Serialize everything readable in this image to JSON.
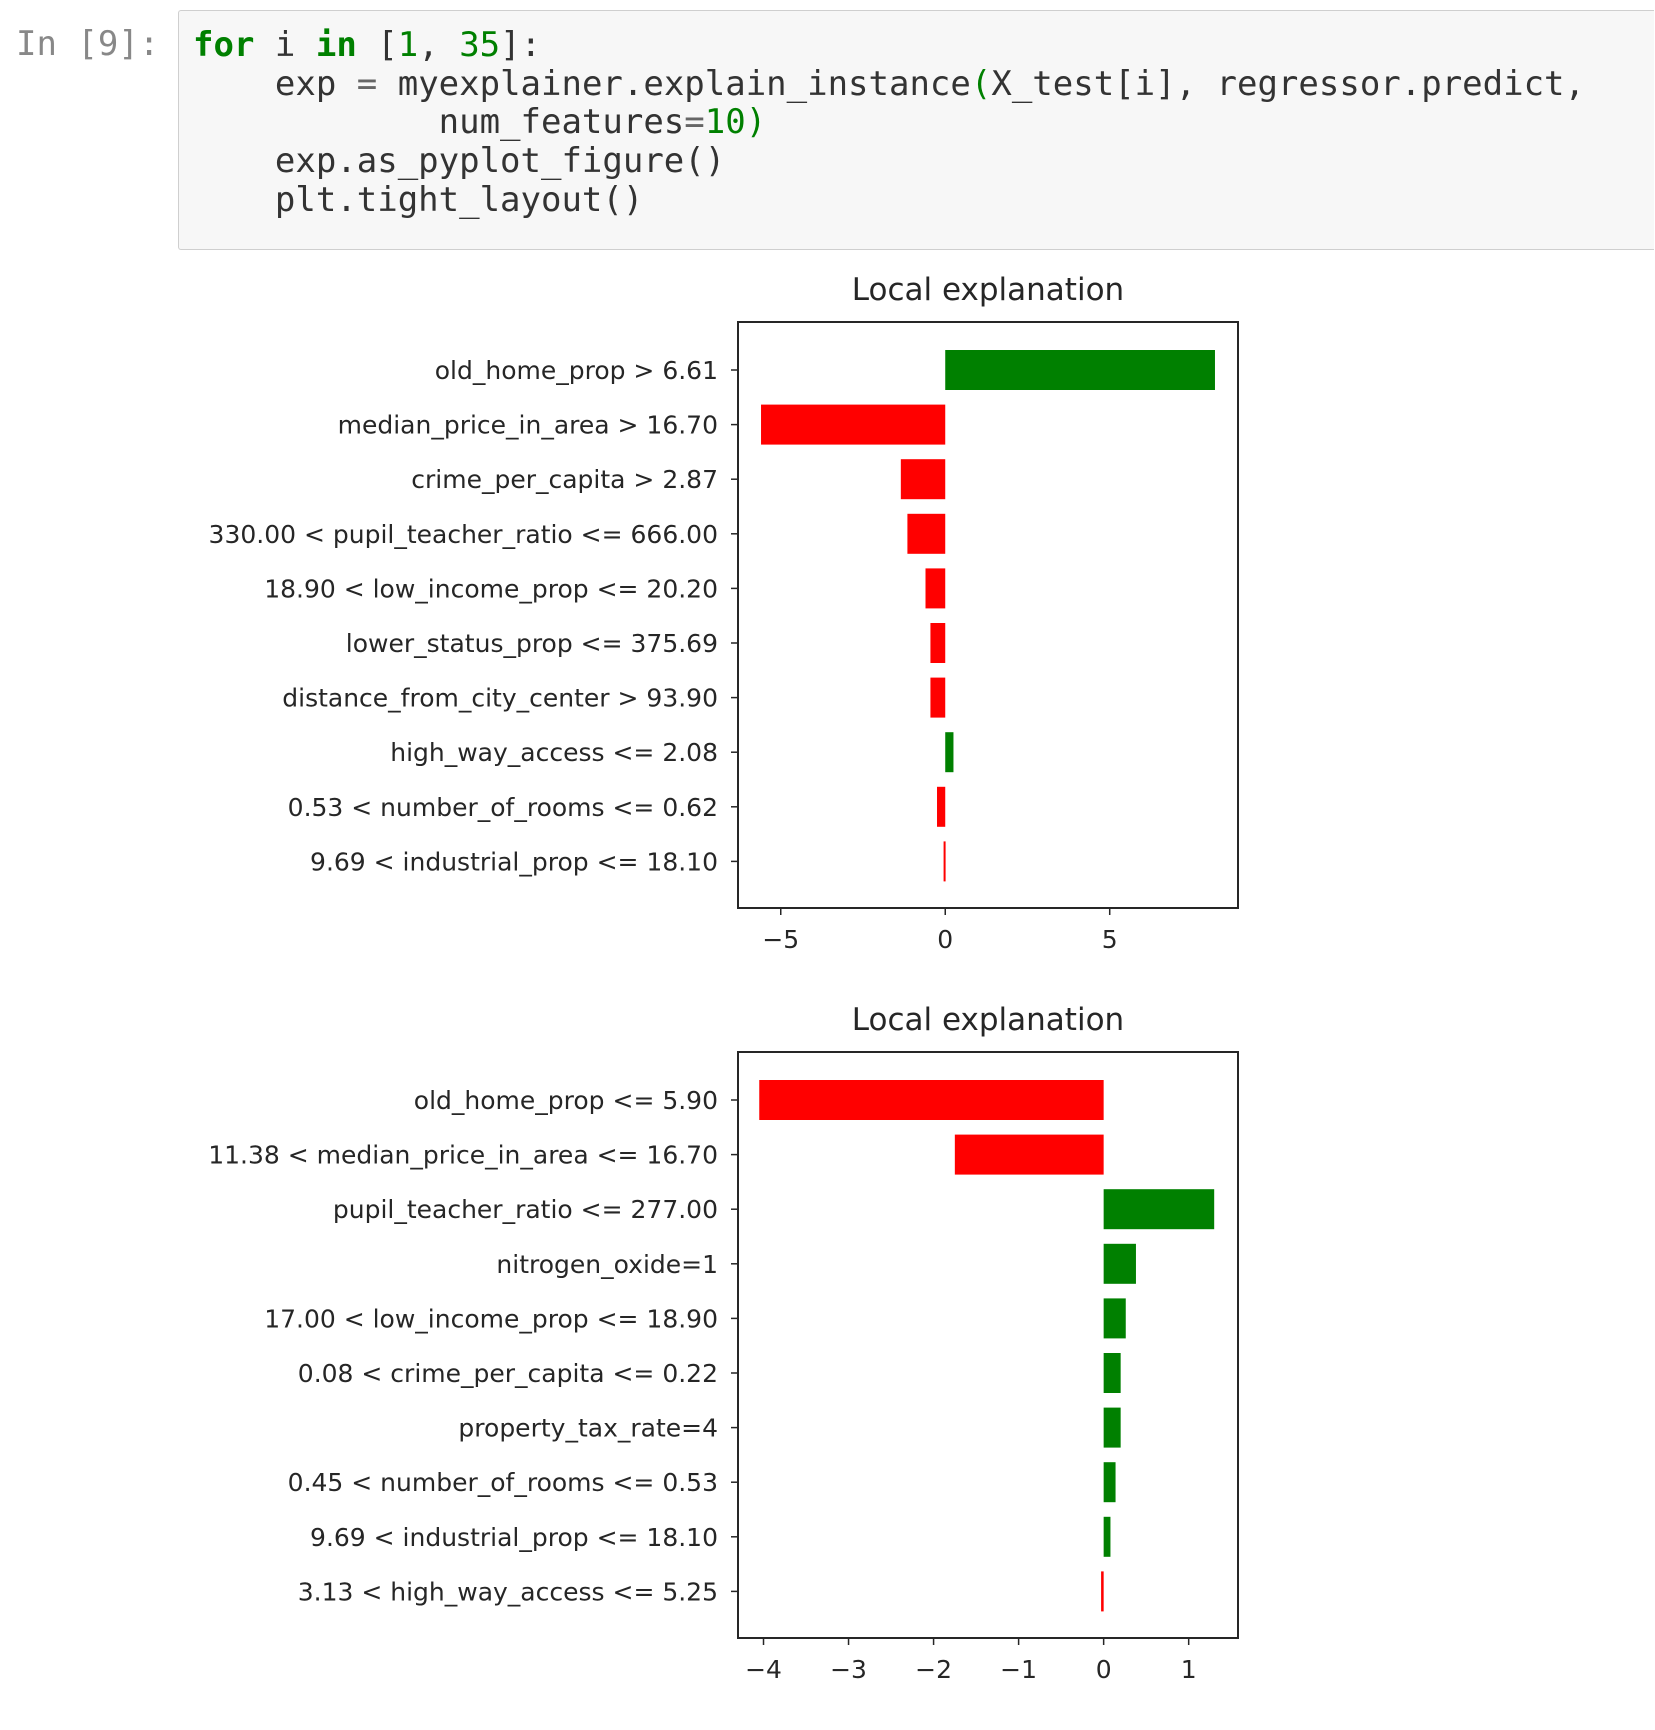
{
  "cell": {
    "prompt": "In [9]:",
    "code": {
      "line1": {
        "kw_for": "for",
        "var_i": " i ",
        "kw_in": "in",
        "open": " [",
        "n1": "1",
        "comma": ", ",
        "n2": "35",
        "close": "]:"
      },
      "line2": {
        "a": "    exp ",
        "eq": "=",
        "b": " myexplainer.explain_instance",
        "p_open": "(",
        "c": "X_test[i], regressor.predict,"
      },
      "line3": {
        "a": "            num_features",
        "eq": "=",
        "n": "10",
        "p_close": ")"
      },
      "line4": "    exp.as_pyplot_figure()",
      "line5": "    plt.tight_layout()"
    }
  },
  "colors": {
    "positive": "#008000",
    "negative": "#ff0000",
    "keyword": "#008000",
    "prompt": "#888888"
  },
  "chart_data": [
    {
      "type": "bar",
      "orientation": "horizontal",
      "title": "Local explanation",
      "categories": [
        "old_home_prop > 6.61",
        "median_price_in_area > 16.70",
        "crime_per_capita > 2.87",
        "330.00 < pupil_teacher_ratio <= 666.00",
        "18.90 < low_income_prop <= 20.20",
        "lower_status_prop <= 375.69",
        "distance_from_city_center > 93.90",
        "high_way_access <= 2.08",
        "0.53 < number_of_rooms <= 0.62",
        "9.69 < industrial_prop <= 18.10"
      ],
      "values": [
        8.2,
        -5.6,
        -1.35,
        -1.15,
        -0.6,
        -0.45,
        -0.45,
        0.25,
        -0.25,
        -0.05
      ],
      "xlim": [
        -6.3,
        8.9
      ],
      "xticks": [
        -5,
        0,
        5
      ],
      "xtick_labels": [
        "−5",
        "0",
        "5"
      ]
    },
    {
      "type": "bar",
      "orientation": "horizontal",
      "title": "Local explanation",
      "categories": [
        "old_home_prop <= 5.90",
        "11.38 < median_price_in_area <= 16.70",
        "pupil_teacher_ratio <= 277.00",
        "nitrogen_oxide=1",
        "17.00 < low_income_prop <= 18.90",
        "0.08 < crime_per_capita <= 0.22",
        "property_tax_rate=4",
        "0.45 < number_of_rooms <= 0.53",
        "9.69 < industrial_prop <= 18.10",
        "3.13 < high_way_access <= 5.25"
      ],
      "values": [
        -4.05,
        -1.75,
        1.3,
        0.38,
        0.26,
        0.2,
        0.2,
        0.14,
        0.08,
        -0.03
      ],
      "xlim": [
        -4.3,
        1.58
      ],
      "xticks": [
        -4,
        -3,
        -2,
        -1,
        0,
        1
      ],
      "xtick_labels": [
        "−4",
        "−3",
        "−2",
        "−1",
        "0",
        "1"
      ]
    }
  ]
}
